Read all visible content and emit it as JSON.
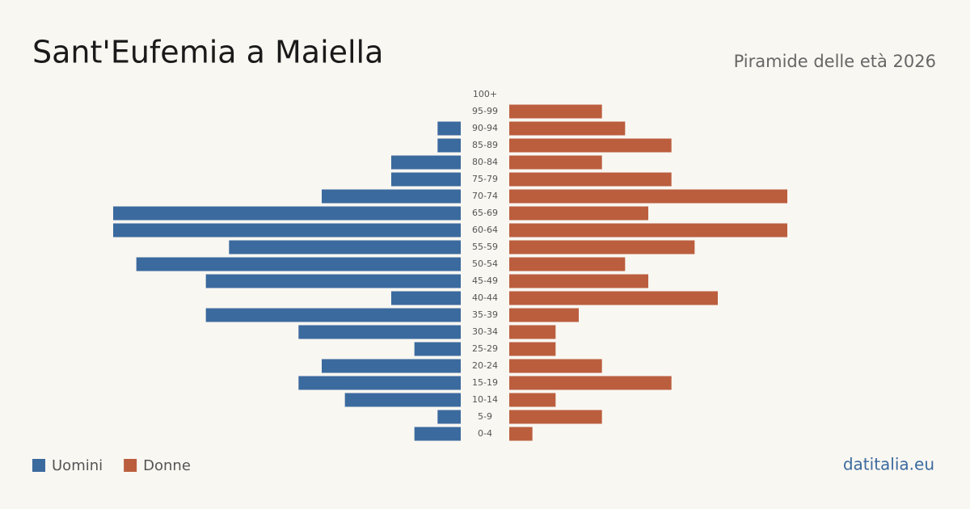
{
  "chart_data": {
    "type": "pyramid",
    "title": "Sant'Eufemia a Maiella",
    "subtitle": "Piramide delle età 2026",
    "source": "datitalia.eu",
    "categories": [
      "100+",
      "95-99",
      "90-94",
      "85-89",
      "80-84",
      "75-79",
      "70-74",
      "65-69",
      "60-64",
      "55-59",
      "50-54",
      "45-49",
      "40-44",
      "35-39",
      "30-34",
      "25-29",
      "20-24",
      "15-19",
      "10-14",
      "5-9",
      "0-4"
    ],
    "series": [
      {
        "name": "Uomini",
        "color": "#3b6a9e",
        "values": [
          0,
          0,
          1,
          1,
          3,
          3,
          6,
          15,
          15,
          10,
          14,
          11,
          3,
          11,
          7,
          2,
          6,
          7,
          5,
          1,
          2
        ]
      },
      {
        "name": "Donne",
        "color": "#bb5e3e",
        "values": [
          0,
          4,
          5,
          7,
          4,
          7,
          12,
          6,
          12,
          8,
          5,
          6,
          9,
          3,
          2,
          2,
          4,
          7,
          2,
          4,
          1
        ]
      }
    ]
  }
}
